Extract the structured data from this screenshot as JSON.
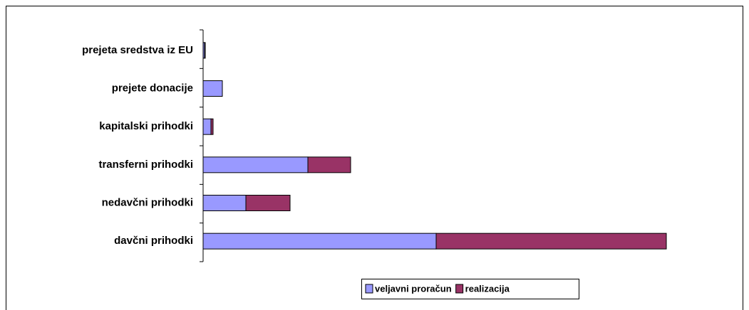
{
  "chart_data": {
    "type": "bar",
    "orientation": "horizontal",
    "stacked": true,
    "categories": [
      "prejeta sredstva iz EU",
      "prejete donacije",
      "kapitalski prihodki",
      "transferni prihodki",
      "nedavčni prihodki",
      "davčni prihodki"
    ],
    "series": [
      {
        "name": "veljavni proračun",
        "color": "#9999ff",
        "values": [
          2,
          27,
          11,
          147,
          60,
          327
        ]
      },
      {
        "name": "realizacija",
        "color": "#993366",
        "values": [
          1,
          0,
          3,
          60,
          62,
          323
        ]
      }
    ],
    "legend": "bottom"
  }
}
